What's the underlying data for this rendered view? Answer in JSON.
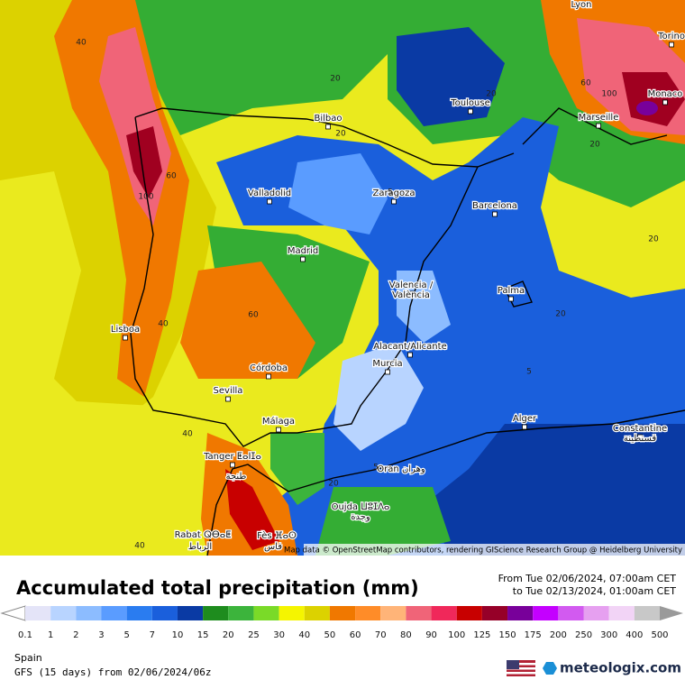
{
  "map": {
    "cities": [
      "Lyon",
      "Torino",
      "Monaco",
      "Marseille",
      "Toulouse",
      "Bilbao",
      "Valladolid",
      "Zaragoza",
      "Barcelona",
      "Madrid",
      "Valencia /",
      "València",
      "Palma",
      "Lisboa",
      "Alacant/Alicante",
      "Murcia",
      "Córdoba",
      "Sevilla",
      "Alger",
      "Constantine",
      "قسنطينة",
      "Málaga",
      "Tanger ⵟⴰⵏⵊⴰ",
      "طنجة",
      "Oran وهران",
      "Oujda ⵡⵓⵊⴷⴰ",
      "وجدة",
      "Rabat ⵕⴱⴰⵟ",
      "الرباط",
      "Fès ⴼⴰⵙ",
      "فاس"
    ],
    "contour_labels": [
      "40",
      "20",
      "20",
      "20",
      "60",
      "100",
      "20",
      "60",
      "100",
      "5",
      "60",
      "40",
      "20",
      "5",
      "40",
      "5",
      "20",
      "40",
      "20"
    ],
    "attribution": "Map data © OpenStreetMap contributors, rendering GIScience Research Group @ Heidelberg University"
  },
  "legend": {
    "title": "Accumulated total precipitation (mm)",
    "date_from": "From Tue 02/06/2024, 07:00am CET",
    "date_to": "to Tue 02/13/2024, 01:00am CET",
    "ticks": [
      0.1,
      1,
      2,
      3,
      5,
      7,
      10,
      15,
      20,
      25,
      30,
      40,
      50,
      60,
      70,
      80,
      90,
      100,
      125,
      150,
      175,
      200,
      250,
      300,
      400,
      500
    ],
    "colors": [
      "#e4e4f8",
      "#b8d4ff",
      "#8cbcff",
      "#5a9cff",
      "#2a7cf0",
      "#1a5fdc",
      "#0a3aa4",
      "#1e8c1e",
      "#3cb43c",
      "#7ada28",
      "#f5f500",
      "#dcd200",
      "#f07800",
      "#ff8c28",
      "#ffb478",
      "#f06478",
      "#f0285a",
      "#c80000",
      "#960028",
      "#78009a",
      "#c400ff",
      "#d25af0",
      "#e6a0f0",
      "#f2d4f6",
      "#c8c8c8"
    ],
    "under_color": "#ffffff",
    "over_color": "#9a9a9a"
  },
  "footer": {
    "region": "Spain",
    "model": "GFS (15 days) from 02/06/2024/06z",
    "brand": "meteologix.com"
  }
}
